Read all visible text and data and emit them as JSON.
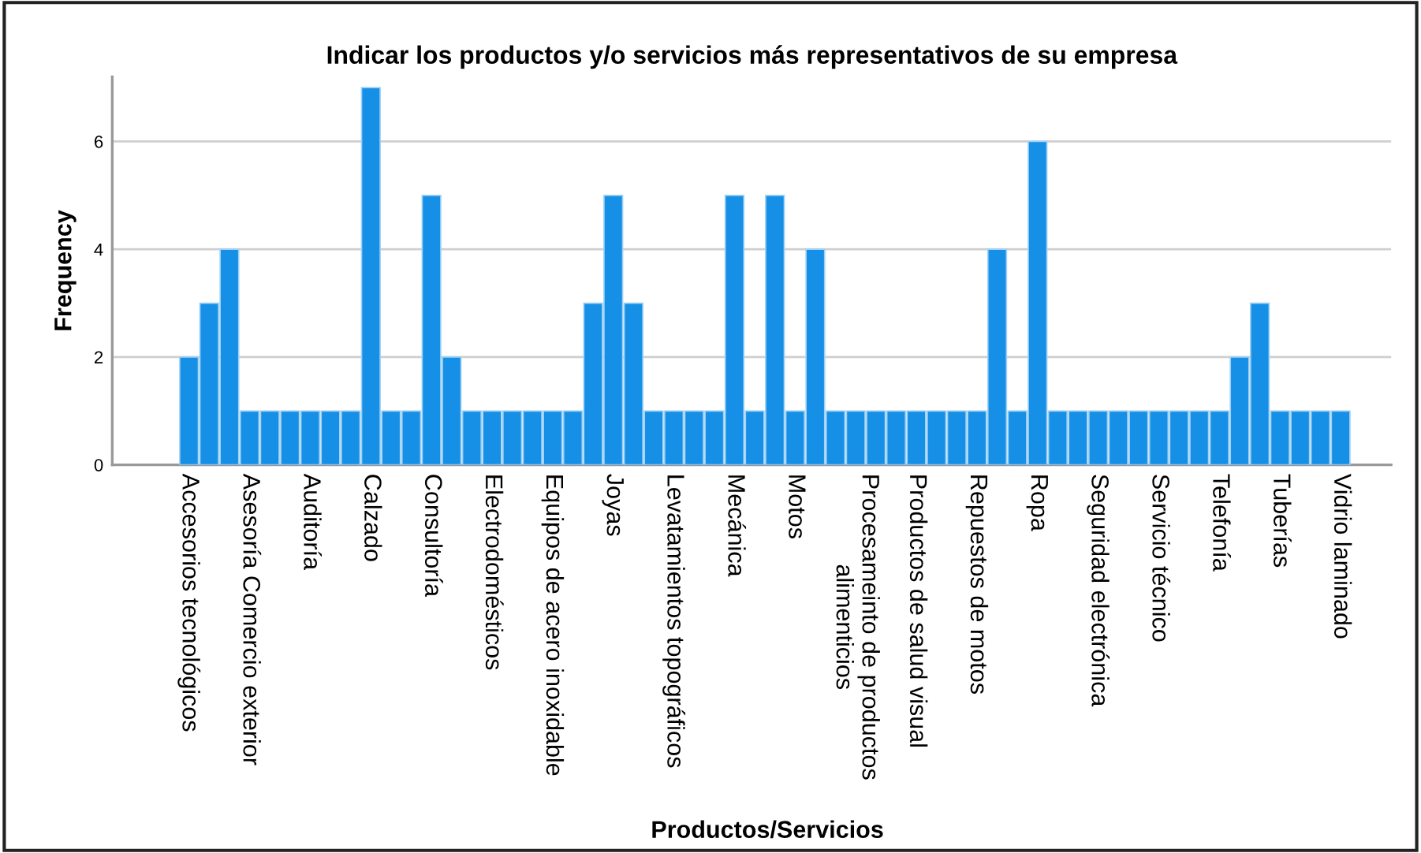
{
  "chart_data": {
    "type": "bar",
    "title": "Indicar los productos y/o servicios más representativos de su empresa",
    "xlabel": "Productos/Servicios",
    "ylabel": "Frequency",
    "categories": [
      "Accesorios tecnológicos",
      null,
      null,
      "Asesoría Comercio exterior",
      null,
      null,
      "Auditoría",
      null,
      null,
      "Calzado",
      null,
      null,
      "Consultoría",
      null,
      null,
      "Electrodomésticos",
      null,
      null,
      "Equipos de acero inoxidable",
      null,
      null,
      "Joyas",
      null,
      null,
      "Levatamientos topográficos",
      null,
      null,
      "Mecánica",
      null,
      null,
      "Motos",
      null,
      null,
      "Procesameinto de productos\nalimenticios",
      null,
      null,
      "Productos de salud visual",
      null,
      null,
      "Repuestos de motos",
      null,
      null,
      "Ropa",
      null,
      null,
      "Seguridad electrónica",
      null,
      null,
      "Servicio técnico",
      null,
      null,
      "Telefonía",
      null,
      null,
      "Tuberías",
      null,
      null,
      "Vidrio laminado"
    ],
    "values": [
      2,
      3,
      4,
      1,
      1,
      1,
      1,
      1,
      1,
      7,
      1,
      1,
      5,
      2,
      1,
      1,
      1,
      1,
      1,
      1,
      3,
      5,
      3,
      1,
      1,
      1,
      1,
      5,
      1,
      5,
      1,
      4,
      1,
      1,
      1,
      1,
      1,
      1,
      1,
      1,
      4,
      1,
      6,
      1,
      1,
      1,
      1,
      1,
      1,
      1,
      1,
      1,
      2,
      3,
      1,
      1,
      1,
      1
    ],
    "color": "#1590e6",
    "ylim": [
      0,
      7.2
    ],
    "yticks": [
      0,
      2,
      4,
      6
    ],
    "grid": "y"
  }
}
